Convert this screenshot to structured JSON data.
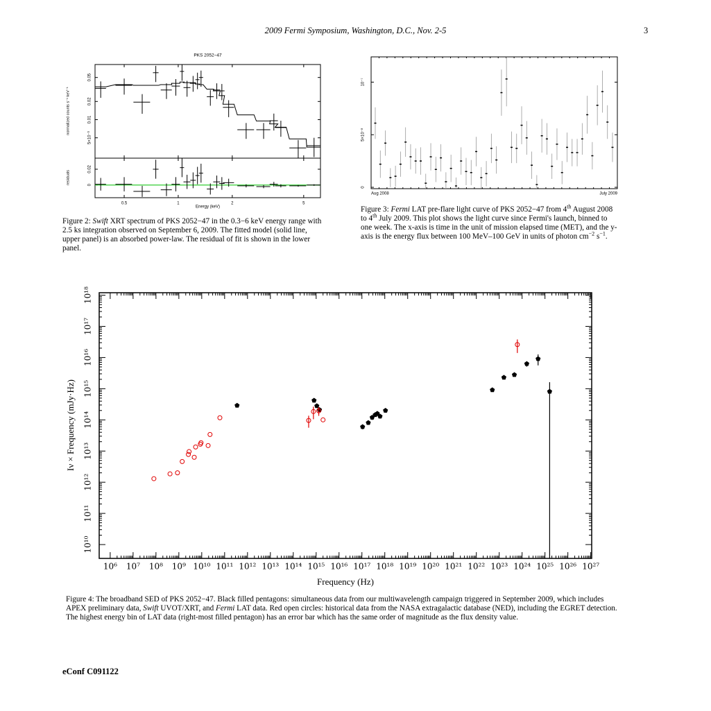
{
  "header": {
    "title": "2009 Fermi Symposium, Washington, D.C., Nov. 2-5",
    "page": "3"
  },
  "captions": {
    "figure_2": [
      "Figure 2: ",
      "Swift",
      " XRT spectrum of PKS 2052−47 in the 0.3−6 keV energy range with 2.5 ks integration observed on September 6, 2009. The fitted model (solid line, upper panel) is an absorbed power-law. The residual of fit is shown in the lower panel."
    ],
    "figure_3": [
      "Figure 3: ",
      "Fermi",
      " LAT pre-flare light curve of PKS 2052−47 from 4",
      "th",
      " August 2008 to 4",
      "th",
      " July 2009. This plot shows the light curve since Fermi's launch, binned to one week. The x-axis is time in the unit of mission elapsed time (MET), and the y-axis is the energy flux between 100 MeV–100 GeV in units of photon cm",
      "−2",
      " s",
      "−1",
      "."
    ],
    "figure_4": [
      "Figure 4: The broadband SED of PKS 2052−47. Black filled pentagons: simultaneous data from our multiwavelength campaign triggered in September 2009, which includes APEX preliminary data, ",
      "Swift",
      " UVOT/XRT, and ",
      "Fermi",
      " LAT data. Red open circles: historical data from the NASA extragalactic database (NED), including the EGRET detection. The highest energy bin of LAT data (right-most filled pentagon) has an error bar which has the same order of magnitude as the flux density value."
    ]
  },
  "footer": "eConf C091122",
  "chart_data": [
    {
      "type": "errorbar",
      "title": "PKS 2052−47",
      "xlabel": "Energy (keV)",
      "ylabel": "normalized counts s⁻¹ keV⁻¹",
      "log_x": true,
      "log_y": true,
      "color": "#000000",
      "xlim": [
        0.344,
        6.2
      ],
      "xticks": [
        0.5,
        1,
        2,
        5
      ],
      "ylim": [
        0.0023,
        0.082
      ],
      "yticks": [
        {
          "value": 0.005,
          "label": "5×10⁻³"
        },
        0.01,
        0.02,
        0.05
      ],
      "x": [
        0.37,
        0.5,
        0.63,
        0.75,
        0.86,
        0.97,
        1.05,
        1.12,
        1.21,
        1.28,
        1.34,
        1.51,
        1.64,
        1.75,
        1.91,
        2.39,
        2.99,
        3.41,
        3.73,
        4.66,
        5.71
      ],
      "xerr": [
        0.026,
        0.053,
        0.067,
        0.027,
        0.061,
        0.052,
        0.028,
        0.05,
        0.043,
        0.034,
        0.036,
        0.067,
        0.073,
        0.062,
        0.136,
        0.255,
        0.266,
        0.18,
        0.265,
        0.5,
        0.51
      ],
      "values": [
        0.033,
        0.037,
        0.0195,
        0.06,
        0.031,
        0.036,
        0.063,
        0.034,
        0.041,
        0.046,
        0.05,
        0.024,
        0.031,
        0.03,
        0.016,
        0.0068,
        0.0068,
        0.0096,
        0.0074,
        0.0034,
        0.0037
      ],
      "yerr": [
        0.01,
        0.011,
        0.007,
        0.018,
        0.009,
        0.011,
        0.019,
        0.01,
        0.012,
        0.014,
        0.015,
        0.007,
        0.009,
        0.009,
        0.005,
        0.002,
        0.002,
        0.003,
        0.0022,
        0.0012,
        0.0013
      ],
      "model": {
        "color": "#000000",
        "values": [
          0.035,
          0.038,
          0.037,
          0.037,
          0.038,
          0.04,
          0.042,
          0.041,
          0.04,
          0.039,
          0.038,
          0.032,
          0.03,
          0.025,
          0.018,
          0.012,
          0.0095,
          0.0085,
          0.0075,
          0.0048,
          0.0035
        ]
      },
      "residuals": {
        "ylabel": "residuals",
        "ylim": [
          -0.016,
          0.034
        ],
        "yticks": [
          0,
          0.02
        ],
        "line_color": "#33cc33",
        "values": [
          0.001,
          0.001,
          -0.008,
          0.02,
          -0.006,
          0.001,
          0.022,
          0.004,
          0.006,
          0.012,
          0.015,
          -0.005,
          0.004,
          0.002,
          0.003,
          -0.001,
          -0.002,
          0.001,
          -0.001,
          -0.001,
          0.0
        ],
        "yerr": [
          0.008,
          0.009,
          0.007,
          0.012,
          0.008,
          0.009,
          0.012,
          0.009,
          0.01,
          0.011,
          0.012,
          0.007,
          0.008,
          0.008,
          0.005,
          0.002,
          0.002,
          0.003,
          0.002,
          0.001,
          0.001
        ]
      }
    },
    {
      "type": "errorbar",
      "color": "#000000",
      "categories": [
        "Aug 2008",
        null,
        null,
        null,
        null,
        null,
        null,
        null,
        null,
        null,
        null,
        null,
        null,
        null,
        null,
        null,
        null,
        null,
        null,
        null,
        null,
        null,
        null,
        null,
        null,
        null,
        null,
        null,
        null,
        null,
        null,
        null,
        null,
        null,
        null,
        null,
        null,
        null,
        null,
        null,
        null,
        null,
        null,
        null,
        null,
        null,
        null,
        "July 2009"
      ],
      "values": [
        6.1e-08,
        2.2e-08,
        4.2e-08,
        9.2e-09,
        1.05e-08,
        2.2e-08,
        4.3e-08,
        2.9e-08,
        2.5e-08,
        2.5e-08,
        3.9e-09,
        2.9e-08,
        1.7e-08,
        2.8e-08,
        5.3e-09,
        1.8e-08,
        1.3e-09,
        2.5e-08,
        1.5e-08,
        1.4e-08,
        3.4e-08,
        9.2e-09,
        1.3e-08,
        3.7e-08,
        2.6e-08,
        9e-08,
        1.03e-07,
        3.8e-08,
        3.7e-08,
        5.9e-08,
        4.7e-08,
        2.1e-08,
        2.6e-09,
        4.9e-08,
        4.6e-08,
        2e-08,
        4.1e-08,
        1.4e-08,
        3.8e-08,
        3.3e-08,
        3.3e-08,
        4.6e-08,
        6.9e-08,
        3e-08,
        7.8e-08,
        9.1e-08,
        6.2e-08,
        3.8e-08
      ],
      "yerr": [
        1.5e-08,
        1.3e-08,
        1.2e-08,
        9e-09,
        1e-08,
        1.2e-08,
        1.4e-08,
        1.2e-08,
        1.2e-08,
        1.3e-08,
        9e-09,
        1.3e-08,
        1.2e-08,
        1.3e-08,
        9e-09,
        1.3e-08,
        8e-09,
        1.3e-08,
        1.3e-08,
        1.2e-08,
        1.4e-08,
        1e-08,
        1.2e-08,
        1.4e-08,
        1.3e-08,
        2.2e-08,
        2.6e-08,
        1.5e-08,
        1.4e-08,
        1.8e-08,
        1.6e-08,
        1.3e-08,
        9e-09,
        1.6e-08,
        1.5e-08,
        1.2e-08,
        1.5e-08,
        1.1e-08,
        1.4e-08,
        1.3e-08,
        1.3e-08,
        1.5e-08,
        1.8e-08,
        1.3e-08,
        1.9e-08,
        2e-08,
        1.6e-08,
        1.4e-08
      ],
      "ylim": [
        -1.3e-09,
        1.24e-07
      ],
      "yticks": [
        0,
        {
          "value": 5e-08,
          "label": "5×10⁻⁸"
        },
        {
          "value": 1e-07,
          "label": "10⁻⁷"
        }
      ]
    },
    {
      "type": "scatter",
      "xlabel": "Frequency (Hz)",
      "ylabel": "Iν × Frequency  (mJy·Hz)",
      "log_x": true,
      "log_y": true,
      "xlim": [
        330000.0,
        1.1e+27
      ],
      "xticks": [
        {
          "value": 1000000.0,
          "label": "10⁶"
        },
        {
          "value": 10000000.0,
          "label": "10⁷"
        },
        {
          "value": 100000000.0,
          "label": "10⁸"
        },
        {
          "value": 1000000000.0,
          "label": "10⁹"
        },
        {
          "value": 10000000000.0,
          "label": "10¹⁰"
        },
        {
          "value": 100000000000.0,
          "label": "10¹¹"
        },
        {
          "value": 1000000000000.0,
          "label": "10¹²"
        },
        {
          "value": 10000000000000.0,
          "label": "10¹³"
        },
        {
          "value": 100000000000000.0,
          "label": "10¹⁴"
        },
        {
          "value": 1000000000000000.0,
          "label": "10¹⁵"
        },
        {
          "value": 1e+16,
          "label": "10¹⁶"
        },
        {
          "value": 1e+17,
          "label": "10¹⁷"
        },
        {
          "value": 1e+18,
          "label": "10¹⁸"
        },
        {
          "value": 1e+19,
          "label": "10¹⁹"
        },
        {
          "value": 1e+20,
          "label": "10²⁰"
        },
        {
          "value": 1e+21,
          "label": "10²¹"
        },
        {
          "value": 1e+22,
          "label": "10²²"
        },
        {
          "value": 1e+23,
          "label": "10²³"
        },
        {
          "value": 1e+24,
          "label": "10²⁴"
        },
        {
          "value": 1e+25,
          "label": "10²⁵"
        },
        {
          "value": 1e+26,
          "label": "10²⁶"
        },
        {
          "value": 1e+27,
          "label": "10²⁷"
        }
      ],
      "ylim": [
        3600000000.0,
        1.2e+18
      ],
      "yticks": [
        {
          "value": 10000000000.0,
          "label": "10¹⁰"
        },
        {
          "value": 100000000000.0,
          "label": "10¹¹"
        },
        {
          "value": 1000000000000.0,
          "label": "10¹²"
        },
        {
          "value": 10000000000000.0,
          "label": "10¹³"
        },
        {
          "value": 100000000000000.0,
          "label": "10¹⁴"
        },
        {
          "value": 1000000000000000.0,
          "label": "10¹⁵"
        },
        {
          "value": 1e+16,
          "label": "10¹⁶"
        },
        {
          "value": 1e+17,
          "label": "10¹⁷"
        },
        {
          "value": 1e+18,
          "label": "10¹⁸"
        }
      ],
      "series": [
        {
          "color": "#000000",
          "marker": "pentagon",
          "x": [
            350000000000.0,
            810000000000000.0,
            1070000000000000.0,
            1400000000000000.0,
            1.07e+17,
            1.9e+17,
            2.8e+17,
            3.8e+17,
            4.7e+17,
            6.2e+17,
            1.07e+18,
            5e+22,
            1.6e+23,
            4.6e+23,
            1.6e+24,
            5e+24,
            1.6e+25
          ],
          "values": [
            290000000000000.0,
            420000000000000.0,
            280000000000000.0,
            210000000000000.0,
            60000000000000.0,
            81000000000000.0,
            120000000000000.0,
            145000000000000.0,
            160000000000000.0,
            130000000000000.0,
            200000000000000.0,
            910000000000000.0,
            2300000000000000.0,
            2800000000000000.0,
            6300000000000000.0,
            9100000000000000.0,
            810000000000000.0
          ],
          "yerr": [
            20000000000000.0,
            50000000000000.0,
            30000000000000.0,
            25000000000000.0,
            10000000000000.0,
            12000000000000.0,
            20000000000000.0,
            20000000000000.0,
            25000000000000.0,
            20000000000000.0,
            30000000000000.0,
            100000000000000.0,
            200000000000000.0,
            300000000000000.0,
            1200000000000000.0,
            3500000000000000.0,
            810000000000000.0
          ]
        },
        {
          "color": "#e00000",
          "marker": "circle-open",
          "x": [
            81000000.0,
            410000000.0,
            870000000.0,
            1400000000.0,
            2600000000.0,
            2800000000.0,
            4700000000.0,
            5400000000.0,
            8700000000.0,
            9300000000.0,
            19000000000.0,
            23000000000.0,
            62000000000.0,
            470000000000000.0,
            760000000000000.0,
            1300000000000000.0,
            2000000000000000.0,
            6.2e+23
          ],
          "values": [
            1300000000000.0,
            1850000000000.0,
            2000000000000.0,
            4600000000000.0,
            7800000000000.0,
            9600000000000.0,
            6300000000000.0,
            13500000000000.0,
            16600000000000.0,
            18500000000000.0,
            15000000000000.0,
            34000000000000.0,
            117000000000000.0,
            96000000000000.0,
            185000000000000.0,
            195000000000000.0,
            100000000000000.0,
            2.6e+16
          ],
          "yerr": [
            0,
            0,
            0,
            0,
            0,
            0,
            0,
            0,
            0,
            0,
            0,
            0,
            0,
            40000000000000.0,
            80000000000000.0,
            60000000000000.0,
            0,
            1.2e+16
          ]
        }
      ]
    }
  ]
}
